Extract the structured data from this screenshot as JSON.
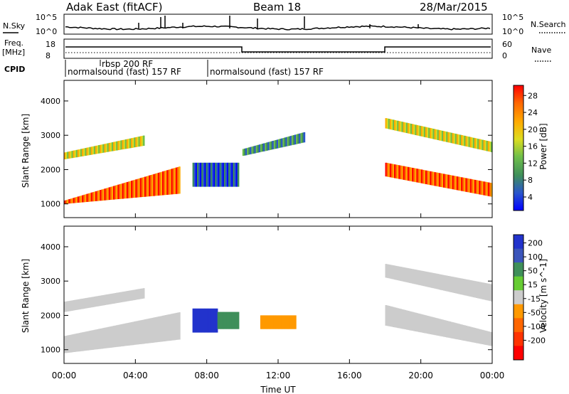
{
  "header": {
    "station": "Adak East (fitACF)",
    "beam": "Beam 18",
    "date": "28/Mar/2015"
  },
  "noise_panel": {
    "left_label": "N.Sky",
    "right_label": "N.Search",
    "left_ticks": [
      "10^5",
      "10^0"
    ],
    "right_ticks": [
      "10^5",
      "10^0"
    ]
  },
  "freq_panel": {
    "left_label_1": "Freq.",
    "left_label_2": "[MHz]",
    "left_ticks": [
      "18",
      "8"
    ],
    "right_label": "Nave",
    "right_ticks": [
      "60",
      "0"
    ]
  },
  "cpid": {
    "label": "CPID",
    "segments": [
      {
        "start_hour": 0,
        "text": "normalsound (fast) 157 RF"
      },
      {
        "start_hour": 1.9,
        "text": "rbsp 200 RF"
      },
      {
        "start_hour": 7.9,
        "text": "normalsound (fast) 157 RF"
      }
    ]
  },
  "power_colorbar": {
    "label": "Power [dB]",
    "ticks": [
      "28",
      "24",
      "20",
      "16",
      "12",
      "8",
      "4"
    ],
    "colors": [
      "#0000ff",
      "#2a55cc",
      "#3f8f5a",
      "#6fbf4a",
      "#dddd20",
      "#ffaa00",
      "#ff6600",
      "#ff0000"
    ]
  },
  "velocity_colorbar": {
    "label": "Velocity [m s^-1]",
    "ticks": [
      "200",
      "100",
      "50",
      "15",
      "-15",
      "-50",
      "-100",
      "-200"
    ],
    "colors": [
      "#2233cc",
      "#3b55bb",
      "#3f8f5a",
      "#66cc33",
      "#cccccc",
      "#ff9900",
      "#ff6600",
      "#ff3300",
      "#ff0000"
    ]
  },
  "chart_data": {
    "type": "heatmap",
    "title": "Adak East (fitACF) Beam 18 28/Mar/2015",
    "xlabel": "Time UT",
    "ylabel": "Slant Range [km]",
    "x_ticks": [
      "00:00",
      "04:00",
      "08:00",
      "12:00",
      "16:00",
      "20:00",
      "00:00"
    ],
    "y_ticks": [
      "1000",
      "2000",
      "3000",
      "4000"
    ],
    "xlim_hours": [
      0,
      24
    ],
    "ylim_km": [
      600,
      4600
    ],
    "panels": [
      {
        "name": "Power [dB]",
        "regions": [
          {
            "from_hour": 0,
            "to_hour": 6.5,
            "range_start_km": [
              1000,
              1300
            ],
            "range_end_km": [
              1100,
              2100
            ],
            "level": 28
          },
          {
            "from_hour": 0,
            "to_hour": 4.5,
            "range_start_km": [
              2300,
              2700
            ],
            "range_end_km": [
              2500,
              3000
            ],
            "level": 20
          },
          {
            "from_hour": 7.2,
            "to_hour": 9.8,
            "range_start_km": [
              1500,
              1500
            ],
            "range_end_km": [
              2200,
              2200
            ],
            "level": 8
          },
          {
            "from_hour": 10,
            "to_hour": 13.5,
            "range_start_km": [
              2400,
              2800
            ],
            "range_end_km": [
              2600,
              3100
            ],
            "level": 12
          },
          {
            "from_hour": 18,
            "to_hour": 24,
            "range_start_km": [
              1800,
              1200
            ],
            "range_end_km": [
              2200,
              1600
            ],
            "level": 28
          },
          {
            "from_hour": 18,
            "to_hour": 24,
            "range_start_km": [
              3200,
              2500
            ],
            "range_end_km": [
              3500,
              2800
            ],
            "level": 20
          }
        ]
      },
      {
        "name": "Velocity [m s^-1]",
        "regions": [
          {
            "from_hour": 0,
            "to_hour": 6.5,
            "range_start_km": [
              900,
              1300
            ],
            "range_end_km": [
              1400,
              2100
            ],
            "level": 0
          },
          {
            "from_hour": 0,
            "to_hour": 4.5,
            "range_start_km": [
              2100,
              2500
            ],
            "range_end_km": [
              2400,
              2800
            ],
            "level": 0
          },
          {
            "from_hour": 7.2,
            "to_hour": 8.6,
            "range_start_km": [
              1500,
              1500
            ],
            "range_end_km": [
              2200,
              2200
            ],
            "level": 200
          },
          {
            "from_hour": 8.6,
            "to_hour": 9.8,
            "range_start_km": [
              1600,
              1600
            ],
            "range_end_km": [
              2100,
              2100
            ],
            "level": 50
          },
          {
            "from_hour": 11,
            "to_hour": 13,
            "range_start_km": [
              1600,
              1600
            ],
            "range_end_km": [
              2000,
              2000
            ],
            "level": -50
          },
          {
            "from_hour": 18,
            "to_hour": 24,
            "range_start_km": [
              1700,
              1100
            ],
            "range_end_km": [
              2300,
              1500
            ],
            "level": 0
          },
          {
            "from_hour": 18,
            "to_hour": 24,
            "range_start_km": [
              3100,
              2400
            ],
            "range_end_km": [
              3500,
              2900
            ],
            "level": 0
          }
        ]
      }
    ]
  }
}
